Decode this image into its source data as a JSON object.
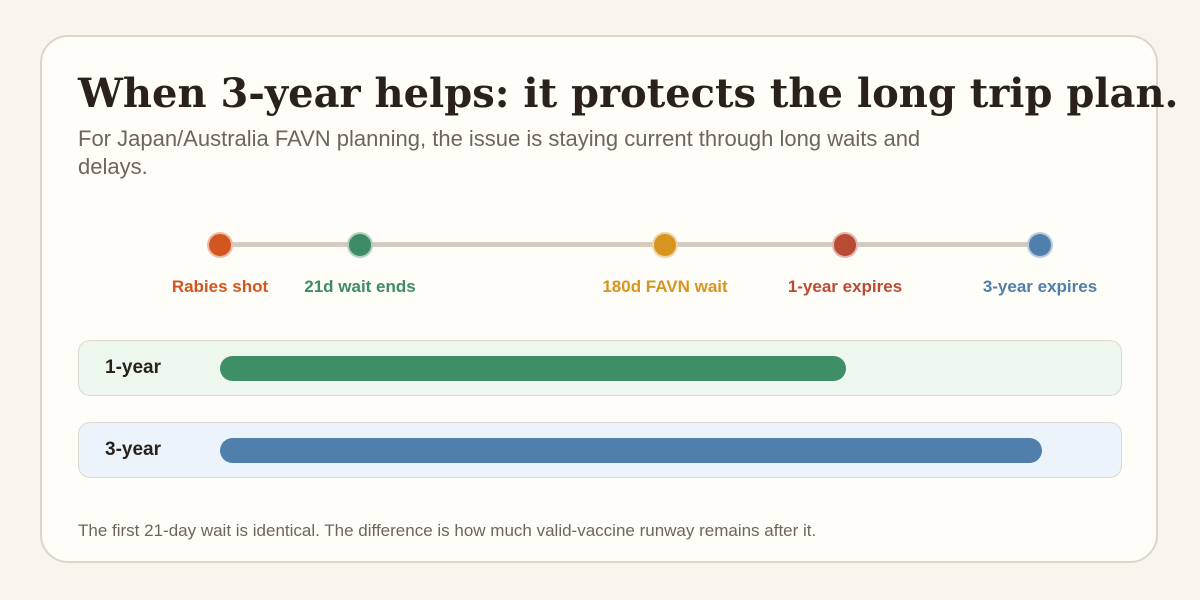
{
  "title": "When 3-year helps: it protects the long trip plan.",
  "subtitle": "For Japan/Australia FAVN planning, the issue is staying current through long waits and delays.",
  "timeline": {
    "milestones": [
      {
        "id": "rabies-shot",
        "label": "Rabies shot",
        "color": "#d2561f"
      },
      {
        "id": "wait-21d",
        "label": "21d wait ends",
        "color": "#3d8c66"
      },
      {
        "id": "favn-180d",
        "label": "180d FAVN wait",
        "color": "#d7951f"
      },
      {
        "id": "expires-1y",
        "label": "1-year expires",
        "color": "#b94a34"
      },
      {
        "id": "expires-3y",
        "label": "3-year expires",
        "color": "#4f7faa"
      }
    ]
  },
  "bands": [
    {
      "id": "1-year",
      "label": "1-year",
      "start": "Rabies shot",
      "end": "1-year expires",
      "bar_color": "#3f8f66",
      "background": "#eef7ee"
    },
    {
      "id": "3-year",
      "label": "3-year",
      "start": "Rabies shot",
      "end": "3-year expires",
      "bar_color": "#4f7faa",
      "background": "#ecf3fb"
    }
  ],
  "footnote": "The first 21-day wait is identical. The difference is how much valid-vaccine runway remains after it."
}
